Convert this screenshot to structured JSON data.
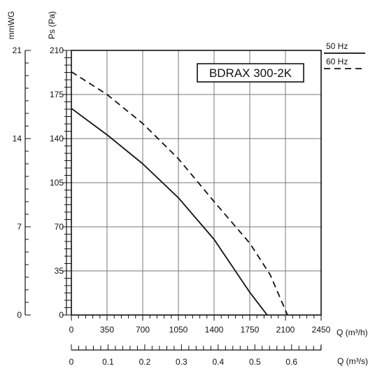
{
  "chart_data": {
    "type": "line",
    "title": "BDRAX 300-2K",
    "xlabel": "Q (m³/h)",
    "x2label": "Q (m³/s)",
    "ylabel": "Ps (Pa)",
    "y2label": "mmWG",
    "xlim": [
      0,
      2450
    ],
    "ylim": [
      0,
      210
    ],
    "x_ticks": [
      0,
      350,
      700,
      1050,
      1400,
      1750,
      2100,
      2450
    ],
    "y_ticks": [
      0,
      35,
      70,
      105,
      140,
      175,
      210
    ],
    "mmwg_ticks": [
      0,
      7,
      14,
      21
    ],
    "x2_ticks": [
      "0",
      "0.1",
      "0.2",
      "0.3",
      "0.4",
      "0.5",
      "0.6"
    ],
    "x2_tick_values": [
      0,
      0.1,
      0.2,
      0.3,
      0.4,
      0.5,
      0.6
    ],
    "grid": true,
    "legend_position": "top-right, outside plot",
    "series": [
      {
        "name": "50 Hz",
        "style": "solid",
        "points": [
          [
            0,
            164
          ],
          [
            350,
            143
          ],
          [
            700,
            120
          ],
          [
            1050,
            93
          ],
          [
            1400,
            60
          ],
          [
            1750,
            18
          ],
          [
            1920,
            0
          ]
        ]
      },
      {
        "name": "60 Hz",
        "style": "dashed",
        "points": [
          [
            0,
            193
          ],
          [
            350,
            175
          ],
          [
            700,
            152
          ],
          [
            1050,
            124
          ],
          [
            1400,
            90
          ],
          [
            1750,
            57
          ],
          [
            1950,
            32
          ],
          [
            2120,
            0
          ]
        ]
      }
    ]
  }
}
